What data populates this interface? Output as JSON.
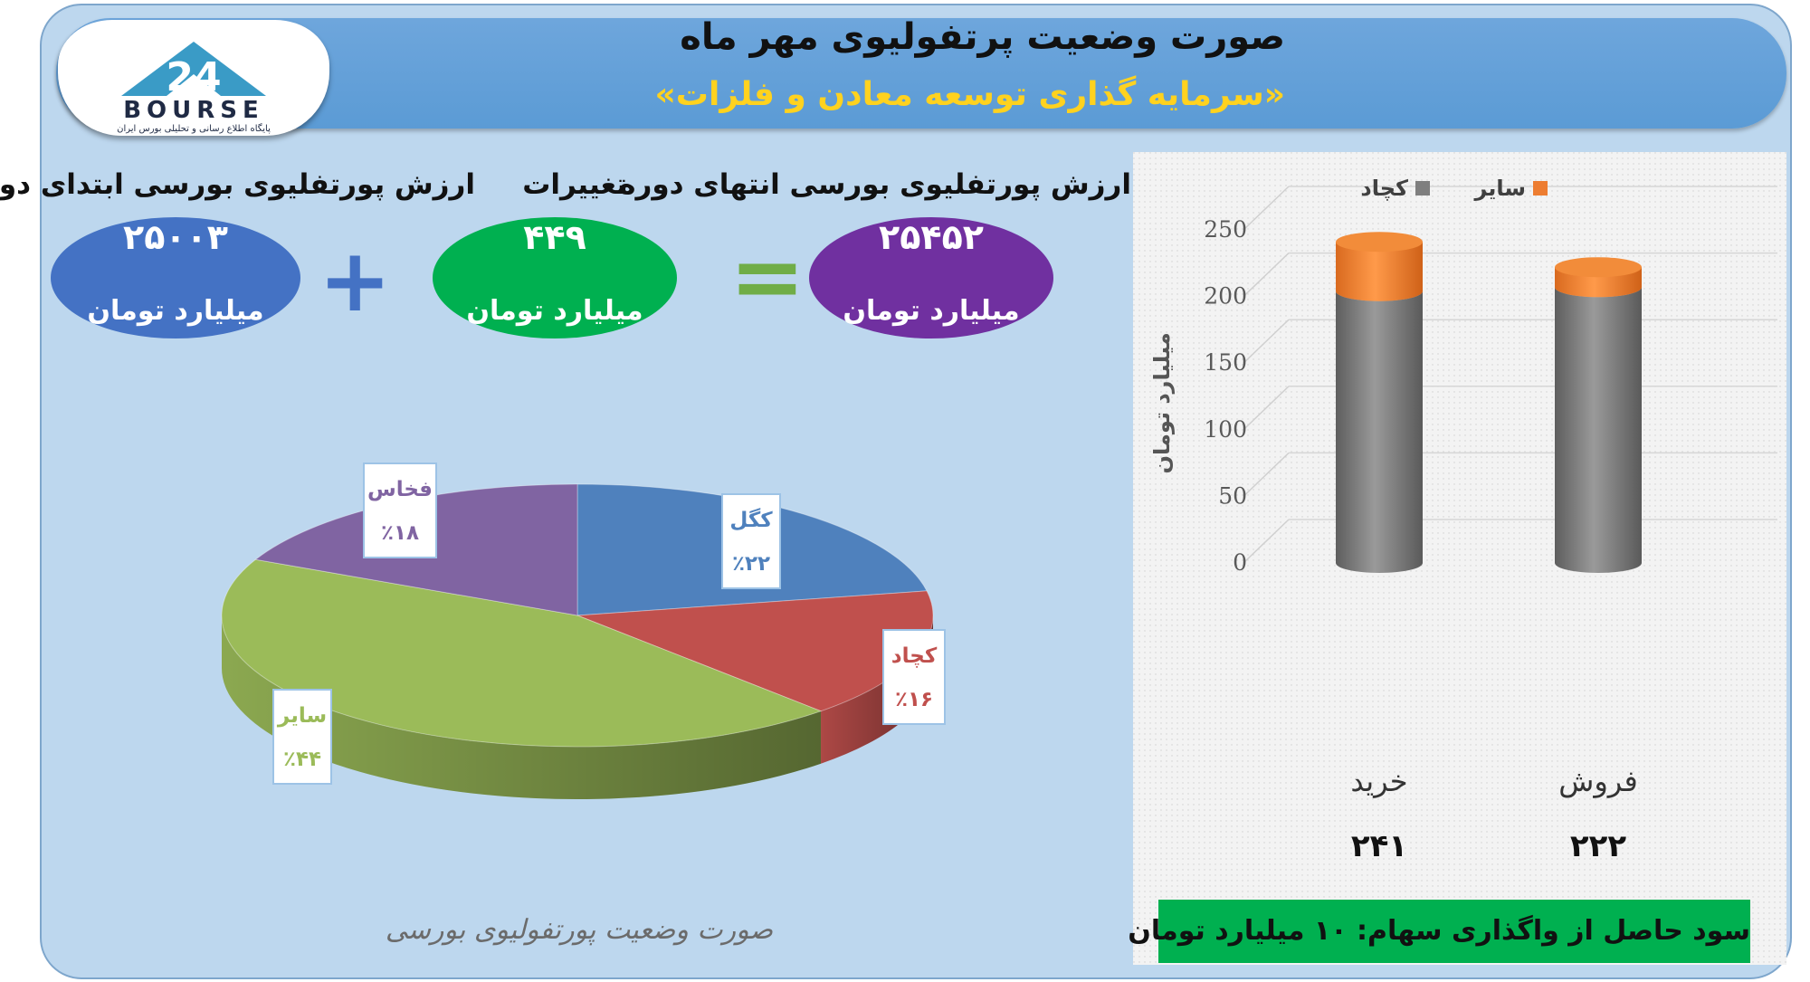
{
  "header": {
    "title": "صورت وضعیت پرتفولیوی مهر ماه",
    "subtitle": "«سرمایه گذاری توسعه معادن و فلزات»",
    "logo_text": "BOURSE",
    "logo_number": "24",
    "logo_caption": "پایگاه اطلاع رسانی و تحلیلی بورس ایران"
  },
  "summary": {
    "start": {
      "label": "ارزش پورتفلیوی بورسی ابتدای دوره",
      "value": "۲۵۰۰۳",
      "unit": "میلیارد تومان",
      "color": "#4472c4"
    },
    "change": {
      "label": "تغییرات",
      "value": "۴۴۹",
      "unit": "میلیارد تومان",
      "color": "#00b050"
    },
    "end": {
      "label": "ارزش پورتفلیوی بورسی انتهای دوره",
      "value": "۲۵۴۵۲",
      "unit": "میلیارد تومان",
      "color": "#7030a0"
    },
    "plus": "+",
    "equals": "="
  },
  "profit_note": "سود حاصل از واگذاری سهام: ۱۰ میلیارد تومان",
  "chart_data": [
    {
      "type": "pie",
      "title": "صورت وضعیت پورتفولیوی بورسی",
      "slices": [
        {
          "name": "کگل",
          "label": "٪۲۲",
          "value": 22,
          "color": "#4f81bd"
        },
        {
          "name": "کچاد",
          "label": "٪۱۶",
          "value": 16,
          "color": "#c0504d"
        },
        {
          "name": "سایر",
          "label": "٪۴۴",
          "value": 44,
          "color": "#9bbb59"
        },
        {
          "name": "فخاس",
          "label": "٪۱۸",
          "value": 18,
          "color": "#8064a2"
        }
      ]
    },
    {
      "type": "bar",
      "stacked": true,
      "categories": [
        "خرید",
        "فروش"
      ],
      "category_totals": [
        "۲۴۱",
        "۲۲۲"
      ],
      "series": [
        {
          "name": "کچاد",
          "values": [
            204,
            207
          ],
          "color": "#7f7f7f"
        },
        {
          "name": "سایر",
          "values": [
            37,
            15
          ],
          "color": "#ed7d31"
        }
      ],
      "ylabel": "میلیارد تومان",
      "ylim": [
        0,
        250
      ],
      "yticks": [
        0,
        50,
        100,
        150,
        200,
        250
      ],
      "grid": true,
      "legend": "top"
    }
  ]
}
